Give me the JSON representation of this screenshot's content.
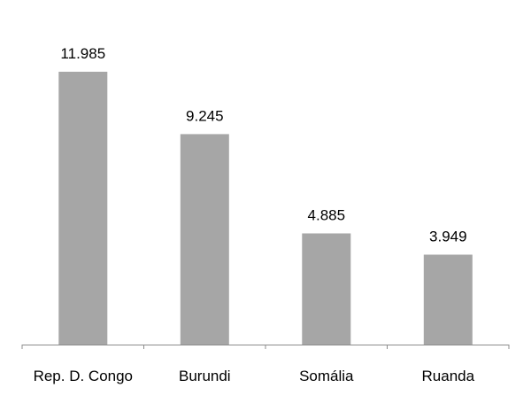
{
  "chart_data": {
    "type": "bar",
    "categories": [
      "Rep. D. Congo",
      "Burundi",
      "Somália",
      "Ruanda"
    ],
    "values": [
      11.985,
      9.245,
      4.885,
      3.949
    ],
    "value_labels": [
      "11.985",
      "9.245",
      "4.885",
      "3.949"
    ],
    "title": "",
    "xlabel": "",
    "ylabel": "",
    "ylim": [
      0,
      12
    ],
    "grid": false,
    "legend": "none",
    "bar_color": "#a6a6a6",
    "axis_color": "#8c8c8c"
  }
}
